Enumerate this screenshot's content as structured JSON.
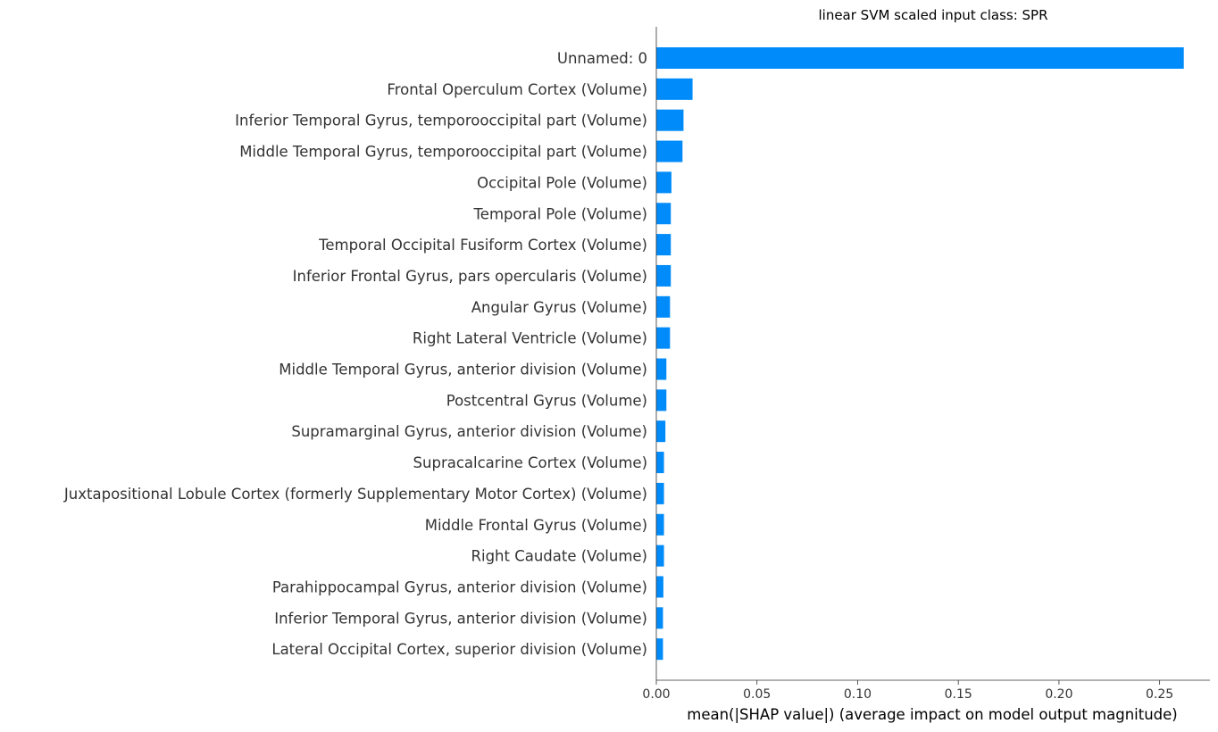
{
  "chart_data": {
    "type": "bar",
    "orientation": "horizontal",
    "title": "linear SVM scaled input class: SPR",
    "xlabel": "mean(|SHAP value|) (average impact on model output magnitude)",
    "ylabel": "",
    "xlim": [
      0,
      0.275
    ],
    "xticks": [
      0.0,
      0.05,
      0.1,
      0.15,
      0.2,
      0.25
    ],
    "xtick_labels": [
      "0.00",
      "0.05",
      "0.10",
      "0.15",
      "0.20",
      "0.25"
    ],
    "grid": false,
    "bar_color": "#008bfb",
    "categories": [
      "Unnamed: 0",
      "Frontal Operculum Cortex (Volume)",
      "Inferior Temporal Gyrus, temporooccipital part (Volume)",
      "Middle Temporal Gyrus, temporooccipital part (Volume)",
      "Occipital Pole (Volume)",
      "Temporal Pole (Volume)",
      "Temporal Occipital Fusiform Cortex (Volume)",
      "Inferior Frontal Gyrus, pars opercularis (Volume)",
      "Angular Gyrus (Volume)",
      "Right Lateral Ventricle (Volume)",
      "Middle Temporal Gyrus, anterior division (Volume)",
      "Postcentral Gyrus (Volume)",
      "Supramarginal Gyrus, anterior division (Volume)",
      "Supracalcarine Cortex (Volume)",
      "Juxtapositional Lobule Cortex (formerly Supplementary Motor Cortex) (Volume)",
      "Middle Frontal Gyrus (Volume)",
      "Right Caudate (Volume)",
      "Parahippocampal Gyrus, anterior division (Volume)",
      "Inferior Temporal Gyrus, anterior division (Volume)",
      "Lateral Occipital Cortex, superior division (Volume)"
    ],
    "values": [
      0.262,
      0.018,
      0.0135,
      0.013,
      0.0075,
      0.0072,
      0.0072,
      0.0072,
      0.0068,
      0.0068,
      0.005,
      0.005,
      0.0045,
      0.0038,
      0.0038,
      0.0038,
      0.0038,
      0.0035,
      0.0033,
      0.0033
    ]
  }
}
